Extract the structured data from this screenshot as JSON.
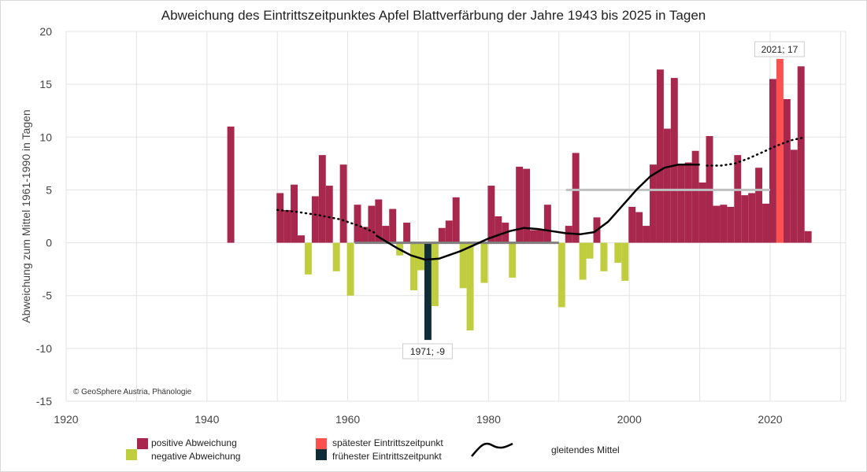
{
  "chart_data": {
    "type": "bar",
    "title": "Abweichung des Eintrittszeitpunktes Apfel Blattverfärbung  der Jahre 1943 bis 2025 in Tagen",
    "xlabel": "",
    "ylabel": "Abweichung zum Mittel 1961-1990 in Tagen",
    "xlim": [
      1920,
      2031
    ],
    "ylim": [
      -15,
      20
    ],
    "xticks": [
      1920,
      1940,
      1960,
      1980,
      2000,
      2020
    ],
    "yticks": [
      20,
      15,
      10,
      5,
      0,
      -5,
      -10,
      -15
    ],
    "grid": true,
    "copyright": "© GeoSphere Austria, Phänologie",
    "colors": {
      "positive": "#a8284d",
      "negative": "#bfcd3f",
      "latest": "#ff5050",
      "earliest": "#0f2d36",
      "mean": "#000000",
      "ref_dark": "#808080",
      "ref_light": "#c0c0c0"
    },
    "years": [
      1943,
      1950,
      1951,
      1952,
      1953,
      1954,
      1955,
      1956,
      1957,
      1958,
      1959,
      1960,
      1961,
      1962,
      1963,
      1964,
      1965,
      1966,
      1967,
      1968,
      1969,
      1970,
      1971,
      1972,
      1973,
      1974,
      1975,
      1976,
      1977,
      1978,
      1979,
      1980,
      1981,
      1982,
      1983,
      1984,
      1985,
      1986,
      1987,
      1988,
      1989,
      1990,
      1991,
      1992,
      1993,
      1994,
      1995,
      1996,
      1997,
      1998,
      1999,
      2000,
      2001,
      2002,
      2003,
      2004,
      2005,
      2006,
      2007,
      2008,
      2009,
      2010,
      2011,
      2012,
      2013,
      2014,
      2015,
      2016,
      2017,
      2018,
      2019,
      2020,
      2021,
      2022,
      2023,
      2024,
      2025
    ],
    "values": [
      11.0,
      4.7,
      3.1,
      5.5,
      0.7,
      -3.0,
      4.4,
      8.3,
      5.4,
      -2.7,
      7.4,
      -5.0,
      3.6,
      1.5,
      3.5,
      4.1,
      1.6,
      3.2,
      -1.2,
      1.9,
      -4.5,
      -2.6,
      -9.2,
      -6.0,
      1.4,
      2.1,
      4.3,
      -4.3,
      -8.3,
      0,
      -3.8,
      5.4,
      2.5,
      1.9,
      -3.3,
      7.2,
      7.0,
      1.2,
      1.2,
      3.6,
      -0.1,
      -6.1,
      1.6,
      8.5,
      -3.5,
      -1.5,
      2.4,
      -2.7,
      0,
      -1.9,
      -3.6,
      3.4,
      2.9,
      1.6,
      7.4,
      16.4,
      10.8,
      15.6,
      7.4,
      7.6,
      8.7,
      5.7,
      10.1,
      3.5,
      3.6,
      3.4,
      8.3,
      4.5,
      4.7,
      7.1,
      3.7,
      15.5,
      17.4,
      13.6,
      8.8,
      16.7,
      1.1
    ],
    "latest": {
      "year": 2021,
      "value": 17,
      "label": "2021; 17"
    },
    "earliest": {
      "year": 1971,
      "value": -9,
      "label": "1971; -9"
    },
    "reference_lines": [
      {
        "name": "Mittel 1961-1990",
        "x": [
          1961,
          1990
        ],
        "y": 0
      },
      {
        "name": "Mittel 1991-2020",
        "x": [
          1991,
          2020
        ],
        "y": 5
      }
    ],
    "smoothed": {
      "solid": [
        [
          1964,
          0.7
        ],
        [
          1967,
          -0.5
        ],
        [
          1969,
          -1.2
        ],
        [
          1971,
          -1.6
        ],
        [
          1973,
          -1.5
        ],
        [
          1976,
          -0.8
        ],
        [
          1978,
          -0.2
        ],
        [
          1980,
          0.4
        ],
        [
          1983,
          1.1
        ],
        [
          1985,
          1.4
        ],
        [
          1987,
          1.3
        ],
        [
          1989,
          1.1
        ],
        [
          1991,
          0.9
        ],
        [
          1993,
          0.8
        ],
        [
          1995,
          1.0
        ],
        [
          1997,
          2.0
        ],
        [
          1999,
          3.5
        ],
        [
          2001,
          5.0
        ],
        [
          2003,
          6.3
        ],
        [
          2005,
          7.1
        ],
        [
          2007,
          7.4
        ],
        [
          2010,
          7.4
        ]
      ],
      "dotted_start": [
        [
          1950,
          3.1
        ],
        [
          1953,
          2.9
        ],
        [
          1956,
          2.6
        ],
        [
          1959,
          2.2
        ],
        [
          1962,
          1.5
        ],
        [
          1964,
          0.9
        ]
      ],
      "dotted_end": [
        [
          2011,
          7.3
        ],
        [
          2013,
          7.3
        ],
        [
          2015,
          7.5
        ],
        [
          2017,
          8.0
        ],
        [
          2019,
          8.6
        ],
        [
          2021,
          9.2
        ],
        [
          2023,
          9.7
        ],
        [
          2025,
          10.0
        ]
      ]
    },
    "legend": [
      {
        "label": "positive Abweichung",
        "key": "positive"
      },
      {
        "label": "negative Abweichung",
        "key": "negative"
      },
      {
        "label": "spätester Eintrittszeitpunkt",
        "key": "latest"
      },
      {
        "label": "frühester Eintrittszeitpunkt",
        "key": "earliest"
      },
      {
        "label": "gleitendes Mittel",
        "key": "mean"
      }
    ]
  }
}
